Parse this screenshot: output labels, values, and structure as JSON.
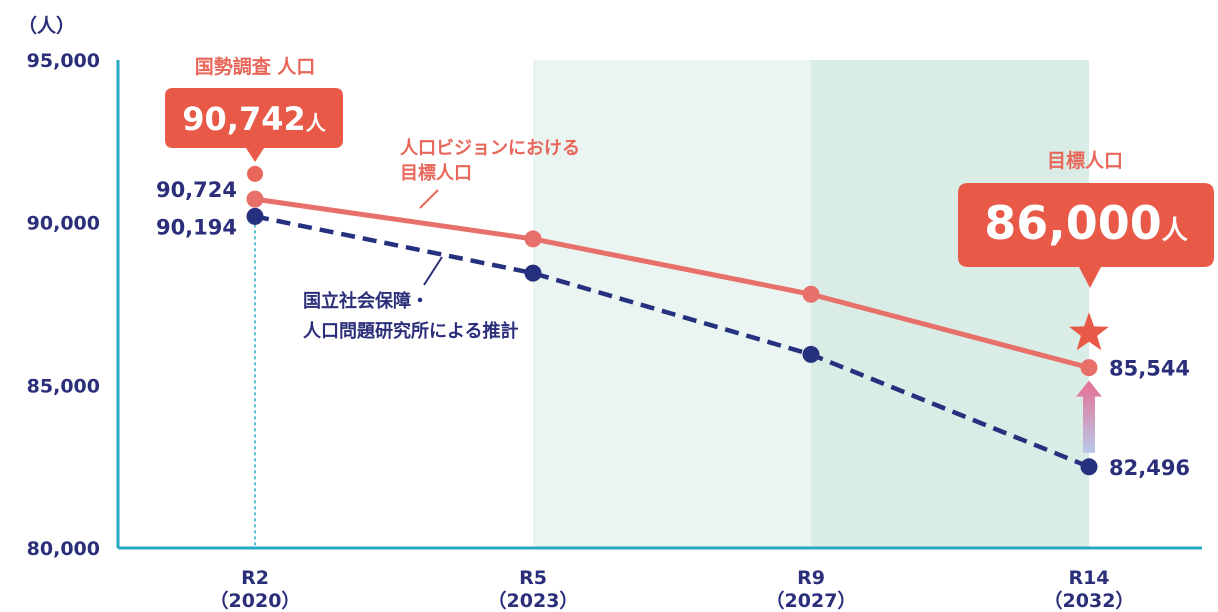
{
  "chart_data": {
    "type": "line",
    "y_unit": "（人）",
    "ylim": [
      80000,
      95000
    ],
    "y_ticks": [
      "95,000",
      "90,000",
      "85,000",
      "80,000"
    ],
    "categories": [
      {
        "era": "R2",
        "year": "（2020）"
      },
      {
        "era": "R5",
        "year": "（2023）"
      },
      {
        "era": "R9",
        "year": "（2027）"
      },
      {
        "era": "R14",
        "year": "（2032）"
      }
    ],
    "series": [
      {
        "name": "人口ビジョンにおける目標人口",
        "name_lines": [
          "人口ビジョンにおける",
          "目標人口"
        ],
        "style": "solid",
        "color": "#e8706a",
        "values": [
          90724,
          89500,
          87800,
          85544
        ],
        "labels": {
          "0": "90,724",
          "3": "85,544"
        }
      },
      {
        "name": "国立社会保障・人口問題研究所による推計",
        "name_lines": [
          "国立社会保障・",
          "人口問題研究所による推計"
        ],
        "style": "dashed",
        "color": "#25307e",
        "values": [
          90194,
          88450,
          85950,
          82496
        ],
        "labels": {
          "0": "90,194",
          "3": "82,496"
        }
      }
    ],
    "census": {
      "title": "国勢調査 人口",
      "number": "90,742",
      "unit": "人",
      "value": 91500
    },
    "target": {
      "title": "目標人口",
      "number": "86,000",
      "unit": "人",
      "value": 86600
    },
    "shaded_spans": [
      {
        "from": 1,
        "to": 2,
        "color": "#eaf4f0"
      },
      {
        "from": 2,
        "to": 3,
        "color": "#d9ede6"
      }
    ],
    "colors": {
      "axis": "#27a9c4",
      "red": "#e8665a",
      "callout": "#e85a47",
      "navy": "#2b2f7a"
    }
  }
}
